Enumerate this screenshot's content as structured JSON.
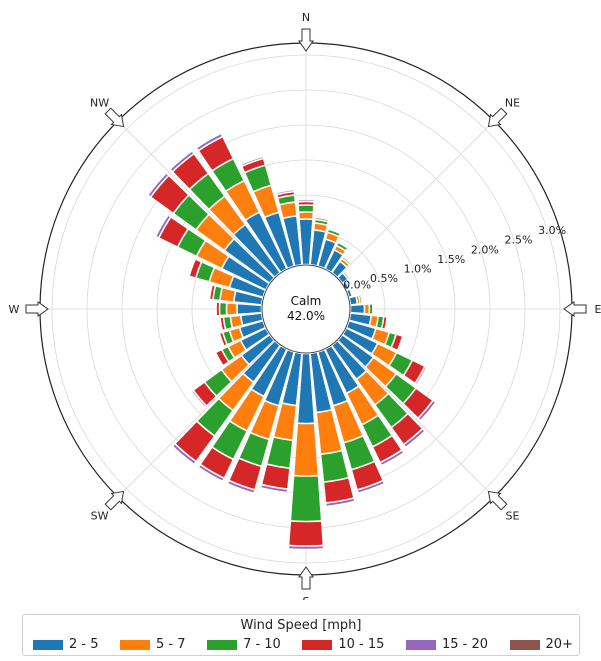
{
  "chart_data": {
    "type": "windrose",
    "center_label": "Calm",
    "center_value": "42.0%",
    "directions": [
      "N",
      "NE",
      "E",
      "SE",
      "S",
      "SW",
      "W",
      "NW"
    ],
    "ring_labels": [
      "0.5%",
      "1.0%",
      "1.5%",
      "2.0%",
      "2.5%",
      "3.0%"
    ],
    "ring_values": [
      0.5,
      1.0,
      1.5,
      2.0,
      2.5,
      3.0
    ],
    "inner_label": "0.0%",
    "legend_title": "Wind Speed [mph]",
    "series": [
      {
        "name": "2 - 5",
        "color": "#1f77b4"
      },
      {
        "name": "5 - 7",
        "color": "#ff7f0e"
      },
      {
        "name": "7 - 10",
        "color": "#2ca02c"
      },
      {
        "name": "10 - 15",
        "color": "#d62728"
      },
      {
        "name": "15 - 20",
        "color": "#9467bd"
      },
      {
        "name": "20+",
        "color": "#8c564b"
      }
    ],
    "bin_width_deg": 10,
    "bins": [
      {
        "dir": 0,
        "values": [
          0.65,
          0.1,
          0.1,
          0.05,
          0.03,
          0.0
        ]
      },
      {
        "dir": 10,
        "values": [
          0.5,
          0.1,
          0.05,
          0.03,
          0.02,
          0.0
        ]
      },
      {
        "dir": 20,
        "values": [
          0.4,
          0.1,
          0.05,
          0.02,
          0.02,
          0.0
        ]
      },
      {
        "dir": 30,
        "values": [
          0.3,
          0.07,
          0.05,
          0.02,
          0.01,
          0.0
        ]
      },
      {
        "dir": 40,
        "values": [
          0.2,
          0.05,
          0.03,
          0.02,
          0.0,
          0.0
        ]
      },
      {
        "dir": 50,
        "values": [
          0.1,
          0.03,
          0.02,
          0.0,
          0.0,
          0.0
        ]
      },
      {
        "dir": 60,
        "values": [
          0.05,
          0.02,
          0.01,
          0.0,
          0.0,
          0.0
        ]
      },
      {
        "dir": 70,
        "values": [
          0.05,
          0.02,
          0.0,
          0.0,
          0.0,
          0.0
        ]
      },
      {
        "dir": 80,
        "values": [
          0.1,
          0.04,
          0.03,
          0.02,
          0.0,
          0.0
        ]
      },
      {
        "dir": 90,
        "values": [
          0.2,
          0.07,
          0.05,
          0.02,
          0.0,
          0.0
        ]
      },
      {
        "dir": 100,
        "values": [
          0.3,
          0.1,
          0.08,
          0.05,
          0.0,
          0.0
        ]
      },
      {
        "dir": 110,
        "values": [
          0.4,
          0.2,
          0.1,
          0.1,
          0.02,
          0.0
        ]
      },
      {
        "dir": 120,
        "values": [
          0.5,
          0.3,
          0.25,
          0.2,
          0.03,
          0.0
        ]
      },
      {
        "dir": 130,
        "values": [
          0.55,
          0.4,
          0.35,
          0.3,
          0.05,
          0.0
        ]
      },
      {
        "dir": 140,
        "values": [
          0.6,
          0.45,
          0.4,
          0.3,
          0.05,
          0.0
        ]
      },
      {
        "dir": 150,
        "values": [
          0.7,
          0.5,
          0.35,
          0.25,
          0.05,
          0.0
        ]
      },
      {
        "dir": 160,
        "values": [
          0.8,
          0.55,
          0.4,
          0.3,
          0.05,
          0.0
        ]
      },
      {
        "dir": 170,
        "values": [
          0.85,
          0.6,
          0.4,
          0.3,
          0.05,
          0.0
        ]
      },
      {
        "dir": 180,
        "values": [
          1.0,
          0.75,
          0.65,
          0.35,
          0.05,
          0.0
        ]
      },
      {
        "dir": 190,
        "values": [
          0.75,
          0.5,
          0.4,
          0.3,
          0.05,
          0.0
        ]
      },
      {
        "dir": 200,
        "values": [
          0.8,
          0.5,
          0.4,
          0.35,
          0.05,
          0.0
        ]
      },
      {
        "dir": 210,
        "values": [
          0.75,
          0.55,
          0.45,
          0.3,
          0.05,
          0.0
        ]
      },
      {
        "dir": 220,
        "values": [
          0.65,
          0.5,
          0.45,
          0.45,
          0.05,
          0.0
        ]
      },
      {
        "dir": 230,
        "values": [
          0.5,
          0.35,
          0.3,
          0.2,
          0.03,
          0.0
        ]
      },
      {
        "dir": 240,
        "values": [
          0.4,
          0.2,
          0.1,
          0.1,
          0.02,
          0.0
        ]
      },
      {
        "dir": 250,
        "values": [
          0.35,
          0.15,
          0.1,
          0.05,
          0.0,
          0.0
        ]
      },
      {
        "dir": 260,
        "values": [
          0.3,
          0.15,
          0.1,
          0.05,
          0.0,
          0.0
        ]
      },
      {
        "dir": 270,
        "values": [
          0.35,
          0.15,
          0.1,
          0.05,
          0.0,
          0.0
        ]
      },
      {
        "dir": 280,
        "values": [
          0.4,
          0.2,
          0.1,
          0.05,
          0.02,
          0.0
        ]
      },
      {
        "dir": 290,
        "values": [
          0.5,
          0.3,
          0.2,
          0.1,
          0.02,
          0.0
        ]
      },
      {
        "dir": 300,
        "values": [
          0.7,
          0.4,
          0.3,
          0.3,
          0.05,
          0.0
        ]
      },
      {
        "dir": 310,
        "values": [
          0.8,
          0.5,
          0.4,
          0.4,
          0.05,
          0.0
        ]
      },
      {
        "dir": 320,
        "values": [
          0.85,
          0.5,
          0.4,
          0.35,
          0.05,
          0.0
        ]
      },
      {
        "dir": 330,
        "values": [
          0.9,
          0.5,
          0.35,
          0.35,
          0.05,
          0.0
        ]
      },
      {
        "dir": 340,
        "values": [
          0.8,
          0.4,
          0.3,
          0.1,
          0.03,
          0.0
        ]
      },
      {
        "dir": 350,
        "values": [
          0.7,
          0.2,
          0.1,
          0.05,
          0.03,
          0.0
        ]
      }
    ]
  }
}
